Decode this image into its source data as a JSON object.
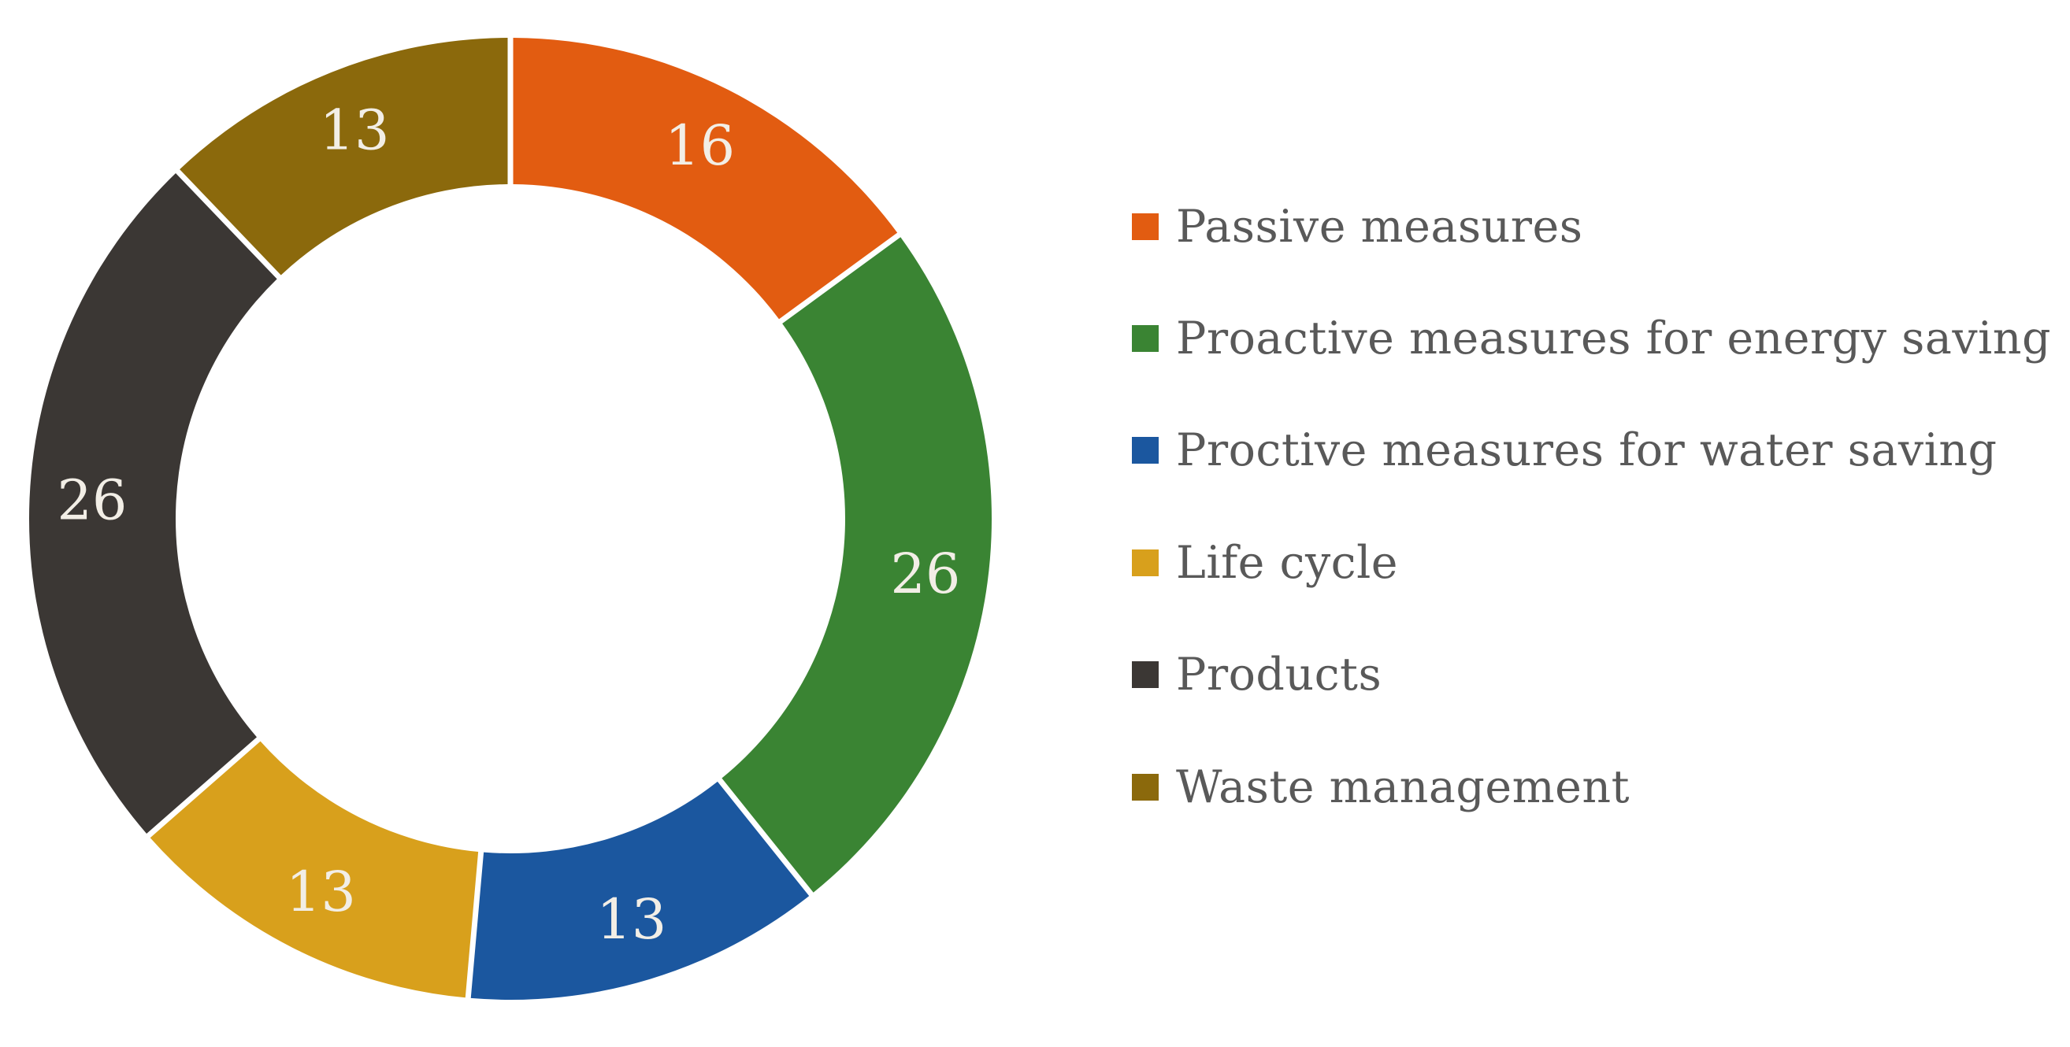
{
  "chart_data": {
    "type": "pie",
    "subtype": "donut",
    "title": "",
    "categories": [
      "Passive measures",
      "Proactive measures for energy saving",
      "Proctive measures for water saving",
      "Life cycle",
      "Products",
      "Waste management"
    ],
    "values": [
      16,
      26,
      13,
      13,
      26,
      13
    ],
    "data_labels": [
      "16",
      "26",
      "13",
      "13",
      "26",
      "13"
    ],
    "colors": [
      "#E25C11",
      "#3A8433",
      "#1B579F",
      "#D8A01C",
      "#3B3734",
      "#8B690C"
    ],
    "data_label_color": "#F2EEE6",
    "start_angle_deg": 0,
    "direction": "clockwise",
    "hole_ratio": 0.695,
    "segment_gap_color": "#FFFFFF",
    "legend_position": "right",
    "background_color": "#FFFFFF"
  },
  "legend": {
    "items": [
      {
        "label": "Passive measures",
        "color": "#E25C11"
      },
      {
        "label": "Proactive measures for energy saving",
        "color": "#3A8433"
      },
      {
        "label": "Proctive measures for water saving",
        "color": "#1B579F"
      },
      {
        "label": "Life cycle",
        "color": "#D8A01C"
      },
      {
        "label": "Products",
        "color": "#3B3734"
      },
      {
        "label": "Waste management",
        "color": "#8B690C"
      }
    ]
  }
}
